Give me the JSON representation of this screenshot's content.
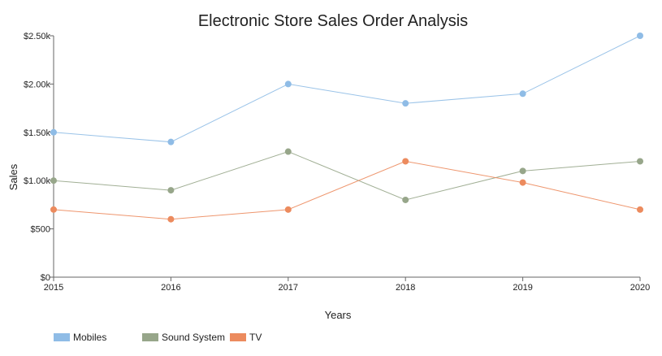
{
  "chart_data": {
    "type": "line",
    "title": "Electronic Store Sales Order Analysis",
    "xlabel": "Years",
    "ylabel": "Sales",
    "x": [
      "2015",
      "2016",
      "2017",
      "2018",
      "2019",
      "2020"
    ],
    "ylim": [
      0,
      2500
    ],
    "yticks": [
      0,
      500,
      1000,
      1500,
      2000,
      2500
    ],
    "ytick_labels": [
      "$0",
      "$500",
      "$1.00k",
      "$1.50k",
      "$2.00k",
      "$2.50k"
    ],
    "grid": false,
    "legend_position": "bottom-left",
    "series": [
      {
        "name": "Mobiles",
        "color": "#8fbce6",
        "values": [
          1500,
          1400,
          2000,
          1800,
          1900,
          2500
        ]
      },
      {
        "name": "Sound System",
        "color": "#97a68a",
        "values": [
          1000,
          900,
          1300,
          800,
          1100,
          1200
        ]
      },
      {
        "name": "TV",
        "color": "#ec8b5e",
        "values": [
          700,
          600,
          700,
          1200,
          980,
          700
        ]
      }
    ]
  }
}
